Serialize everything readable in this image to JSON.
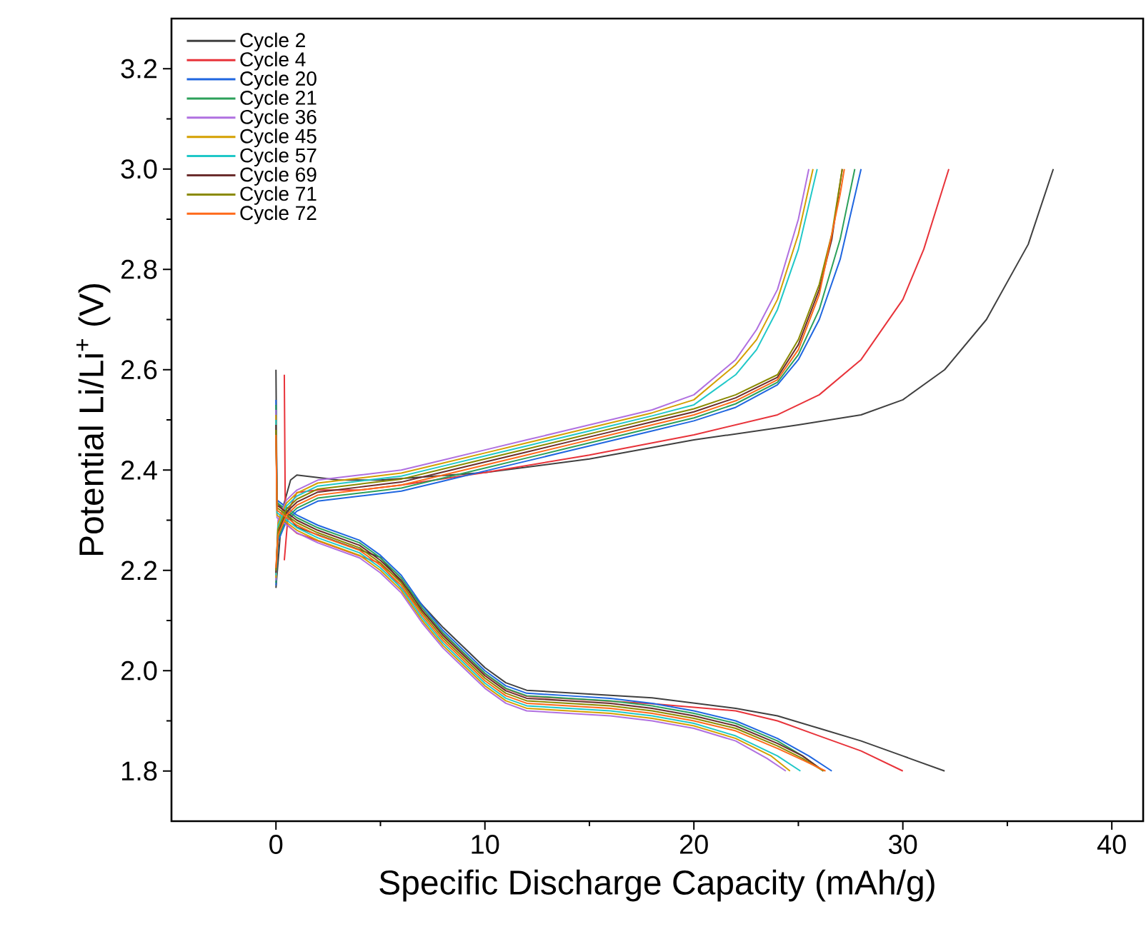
{
  "chart_data": {
    "type": "line",
    "xlabel": "Specific Discharge Capacity (mAh/g)",
    "ylabel": "Potential Li/Li$^{+}$ (V)",
    "xlim": [
      -5,
      41.5
    ],
    "ylim": [
      1.7,
      3.3
    ],
    "xticks": [
      0,
      10,
      20,
      30,
      40
    ],
    "yticks": [
      1.8,
      {
        "value": 2,
        "label": "2.0"
      },
      2.2,
      2.4,
      2.6,
      2.8,
      {
        "value": 3,
        "label": "3.0"
      },
      3.2
    ],
    "legend": "top left",
    "line_style": "solid",
    "series": [
      {
        "name": "Cycle 2",
        "color": "#404040",
        "x": [
          0,
          0.05,
          1,
          3,
          5,
          6,
          8,
          10,
          11,
          12,
          14,
          18,
          22,
          24,
          26,
          28,
          30,
          32,
          null,
          0,
          0.3,
          0.7,
          1,
          2,
          3,
          5,
          10,
          15,
          20,
          25,
          28,
          30,
          32,
          34,
          36,
          37.2
        ],
        "values": [
          2.6,
          2.336,
          2.286,
          2.256,
          2.226,
          2.176,
          2.086,
          2.006,
          1.976,
          1.961,
          1.956,
          1.946,
          1.925,
          1.91,
          1.885,
          1.86,
          1.83,
          1.8,
          null,
          2.165,
          2.32,
          2.38,
          2.39,
          2.385,
          2.38,
          2.38,
          2.395,
          2.422,
          2.46,
          2.49,
          2.51,
          2.54,
          2.6,
          2.7,
          2.85,
          3.0
        ]
      },
      {
        "name": "Cycle 4",
        "color": "#e8333a",
        "x": [
          0.4,
          0.45,
          1,
          3,
          5,
          6,
          8,
          10,
          11,
          12,
          14,
          18,
          22,
          24,
          26,
          28,
          30,
          null,
          0.4,
          0.6,
          1,
          2,
          4,
          6,
          10,
          15,
          20,
          24,
          26,
          28,
          30,
          31,
          32.2
        ],
        "values": [
          2.59,
          2.294,
          2.274,
          2.244,
          2.214,
          2.164,
          2.074,
          1.994,
          1.964,
          1.949,
          1.944,
          1.934,
          1.92,
          1.9,
          1.87,
          1.84,
          1.8,
          null,
          2.22,
          2.32,
          2.355,
          2.36,
          2.36,
          2.37,
          2.395,
          2.43,
          2.47,
          2.51,
          2.55,
          2.62,
          2.74,
          2.84,
          3.0
        ]
      },
      {
        "name": "Cycle 20",
        "color": "#1f66e0",
        "x": [
          0,
          0.05,
          1,
          2,
          4,
          5,
          6,
          7,
          8,
          9,
          10,
          11,
          12,
          14,
          16,
          18,
          20,
          22,
          24,
          25.5,
          26.6,
          null,
          0,
          0.1,
          0.5,
          1,
          2,
          4,
          6,
          8,
          10,
          12,
          14,
          16,
          18,
          20,
          22,
          24,
          25,
          26,
          27,
          28.0
        ],
        "values": [
          2.54,
          2.34,
          2.31,
          2.29,
          2.26,
          2.23,
          2.19,
          2.13,
          2.08,
          2.04,
          2.0,
          1.97,
          1.955,
          1.95,
          1.945,
          1.935,
          1.92,
          1.9,
          1.865,
          1.83,
          1.8,
          null,
          2.17,
          2.258,
          2.298,
          2.318,
          2.338,
          2.348,
          2.358,
          2.378,
          2.398,
          2.418,
          2.438,
          2.458,
          2.478,
          2.498,
          2.525,
          2.57,
          2.62,
          2.7,
          2.82,
          3.0
        ]
      },
      {
        "name": "Cycle 21",
        "color": "#2ca05a",
        "x": [
          0,
          0.05,
          1,
          2,
          4,
          5,
          6,
          7,
          8,
          9,
          10,
          11,
          12,
          14,
          16,
          18,
          20,
          22,
          24,
          25.2,
          26.2,
          null,
          0,
          0.1,
          0.5,
          1,
          2,
          4,
          6,
          8,
          10,
          12,
          14,
          16,
          18,
          20,
          22,
          24,
          25,
          26,
          27,
          27.7
        ],
        "values": [
          2.53,
          2.335,
          2.305,
          2.285,
          2.255,
          2.225,
          2.185,
          2.125,
          2.075,
          2.035,
          1.995,
          1.965,
          1.95,
          1.945,
          1.94,
          1.93,
          1.915,
          1.895,
          1.86,
          1.83,
          1.8,
          null,
          2.175,
          2.264,
          2.304,
          2.324,
          2.344,
          2.354,
          2.364,
          2.384,
          2.404,
          2.424,
          2.444,
          2.464,
          2.484,
          2.504,
          2.532,
          2.575,
          2.63,
          2.72,
          2.86,
          3.0
        ]
      },
      {
        "name": "Cycle 36",
        "color": "#b070e0",
        "x": [
          0,
          0.05,
          1,
          2,
          4,
          5,
          6,
          7,
          8,
          9,
          10,
          11,
          12,
          14,
          16,
          18,
          20,
          22,
          23.5,
          24.4,
          null,
          0,
          0.1,
          0.5,
          1,
          2,
          4,
          6,
          8,
          10,
          12,
          14,
          16,
          18,
          20,
          22,
          23,
          24,
          25,
          25.5
        ],
        "values": [
          2.52,
          2.305,
          2.275,
          2.255,
          2.225,
          2.195,
          2.155,
          2.095,
          2.045,
          2.005,
          1.965,
          1.935,
          1.92,
          1.915,
          1.91,
          1.9,
          1.885,
          1.86,
          1.825,
          1.8,
          null,
          2.18,
          2.3,
          2.34,
          2.36,
          2.38,
          2.39,
          2.4,
          2.42,
          2.44,
          2.46,
          2.48,
          2.5,
          2.52,
          2.55,
          2.62,
          2.68,
          2.76,
          2.9,
          3.0
        ]
      },
      {
        "name": "Cycle 45",
        "color": "#d4a000",
        "x": [
          0,
          0.05,
          1,
          2,
          4,
          5,
          6,
          7,
          8,
          9,
          10,
          11,
          12,
          14,
          16,
          18,
          20,
          22,
          23.7,
          24.6,
          null,
          0,
          0.1,
          0.5,
          1,
          2,
          4,
          6,
          8,
          10,
          12,
          14,
          16,
          18,
          20,
          22,
          23,
          24,
          25,
          25.7
        ],
        "values": [
          2.51,
          2.31,
          2.28,
          2.26,
          2.23,
          2.2,
          2.16,
          2.1,
          2.05,
          2.01,
          1.97,
          1.94,
          1.925,
          1.92,
          1.915,
          1.905,
          1.89,
          1.865,
          1.83,
          1.8,
          null,
          2.185,
          2.294,
          2.334,
          2.354,
          2.374,
          2.384,
          2.394,
          2.414,
          2.434,
          2.454,
          2.474,
          2.494,
          2.514,
          2.54,
          2.61,
          2.66,
          2.74,
          2.87,
          3.0
        ]
      },
      {
        "name": "Cycle 57",
        "color": "#20c8c8",
        "x": [
          0,
          0.05,
          1,
          2,
          4,
          5,
          6,
          7,
          8,
          9,
          10,
          11,
          12,
          14,
          16,
          18,
          20,
          22,
          24,
          25.1,
          null,
          0,
          0.1,
          0.5,
          1,
          2,
          4,
          6,
          8,
          10,
          12,
          14,
          16,
          18,
          20,
          22,
          23,
          24,
          25,
          25.9
        ],
        "values": [
          2.5,
          2.315,
          2.285,
          2.265,
          2.235,
          2.205,
          2.165,
          2.105,
          2.055,
          2.015,
          1.975,
          1.945,
          1.93,
          1.925,
          1.92,
          1.91,
          1.895,
          1.87,
          1.83,
          1.8,
          null,
          2.19,
          2.288,
          2.328,
          2.348,
          2.368,
          2.378,
          2.388,
          2.408,
          2.428,
          2.448,
          2.468,
          2.488,
          2.508,
          2.53,
          2.59,
          2.64,
          2.72,
          2.84,
          3.0
        ]
      },
      {
        "name": "Cycle 69",
        "color": "#6b2d2d",
        "x": [
          0,
          0.05,
          1,
          2,
          4,
          5,
          6,
          7,
          8,
          9,
          10,
          11,
          12,
          14,
          16,
          18,
          20,
          22,
          24,
          25.2,
          26.2,
          null,
          0,
          0.1,
          0.5,
          1,
          2,
          4,
          6,
          8,
          10,
          12,
          14,
          16,
          18,
          20,
          22,
          24,
          25,
          26,
          26.6,
          27.1
        ],
        "values": [
          2.49,
          2.33,
          2.3,
          2.28,
          2.25,
          2.22,
          2.18,
          2.12,
          2.07,
          2.03,
          1.99,
          1.96,
          1.945,
          1.94,
          1.935,
          1.925,
          1.91,
          1.89,
          1.855,
          1.83,
          1.8,
          null,
          2.195,
          2.276,
          2.316,
          2.336,
          2.356,
          2.366,
          2.376,
          2.396,
          2.416,
          2.436,
          2.456,
          2.476,
          2.496,
          2.516,
          2.544,
          2.585,
          2.65,
          2.76,
          2.86,
          3.0
        ]
      },
      {
        "name": "Cycle 71",
        "color": "#8a8a00",
        "x": [
          0,
          0.05,
          1,
          2,
          4,
          5,
          6,
          7,
          8,
          9,
          10,
          11,
          12,
          14,
          16,
          18,
          20,
          22,
          24,
          25.2,
          26.2,
          null,
          0,
          0.1,
          0.5,
          1,
          2,
          4,
          6,
          8,
          10,
          12,
          14,
          16,
          18,
          20,
          22,
          24,
          25,
          26,
          26.6,
          27.1
        ],
        "values": [
          2.48,
          2.325,
          2.295,
          2.275,
          2.245,
          2.215,
          2.175,
          2.115,
          2.065,
          2.025,
          1.985,
          1.955,
          1.94,
          1.935,
          1.93,
          1.92,
          1.905,
          1.885,
          1.85,
          1.825,
          1.8,
          null,
          2.2,
          2.282,
          2.322,
          2.342,
          2.362,
          2.372,
          2.382,
          2.402,
          2.422,
          2.442,
          2.462,
          2.482,
          2.502,
          2.522,
          2.55,
          2.59,
          2.66,
          2.77,
          2.87,
          3.0
        ]
      },
      {
        "name": "Cycle 72",
        "color": "#ff6a1a",
        "x": [
          0,
          0.05,
          1,
          2,
          4,
          5,
          6,
          7,
          8,
          9,
          10,
          11,
          12,
          14,
          16,
          18,
          20,
          22,
          24,
          25.3,
          26.3,
          null,
          0,
          0.1,
          0.5,
          1,
          2,
          4,
          6,
          8,
          10,
          12,
          14,
          16,
          18,
          20,
          22,
          24,
          25,
          26,
          27,
          27.2
        ],
        "values": [
          2.47,
          2.32,
          2.29,
          2.27,
          2.24,
          2.21,
          2.17,
          2.11,
          2.06,
          2.02,
          1.98,
          1.95,
          1.935,
          1.93,
          1.925,
          1.915,
          1.9,
          1.88,
          1.845,
          1.82,
          1.8,
          null,
          2.205,
          2.27,
          2.31,
          2.33,
          2.35,
          2.36,
          2.37,
          2.39,
          2.41,
          2.43,
          2.45,
          2.47,
          2.49,
          2.51,
          2.538,
          2.58,
          2.64,
          2.75,
          2.95,
          3.0
        ]
      }
    ]
  }
}
